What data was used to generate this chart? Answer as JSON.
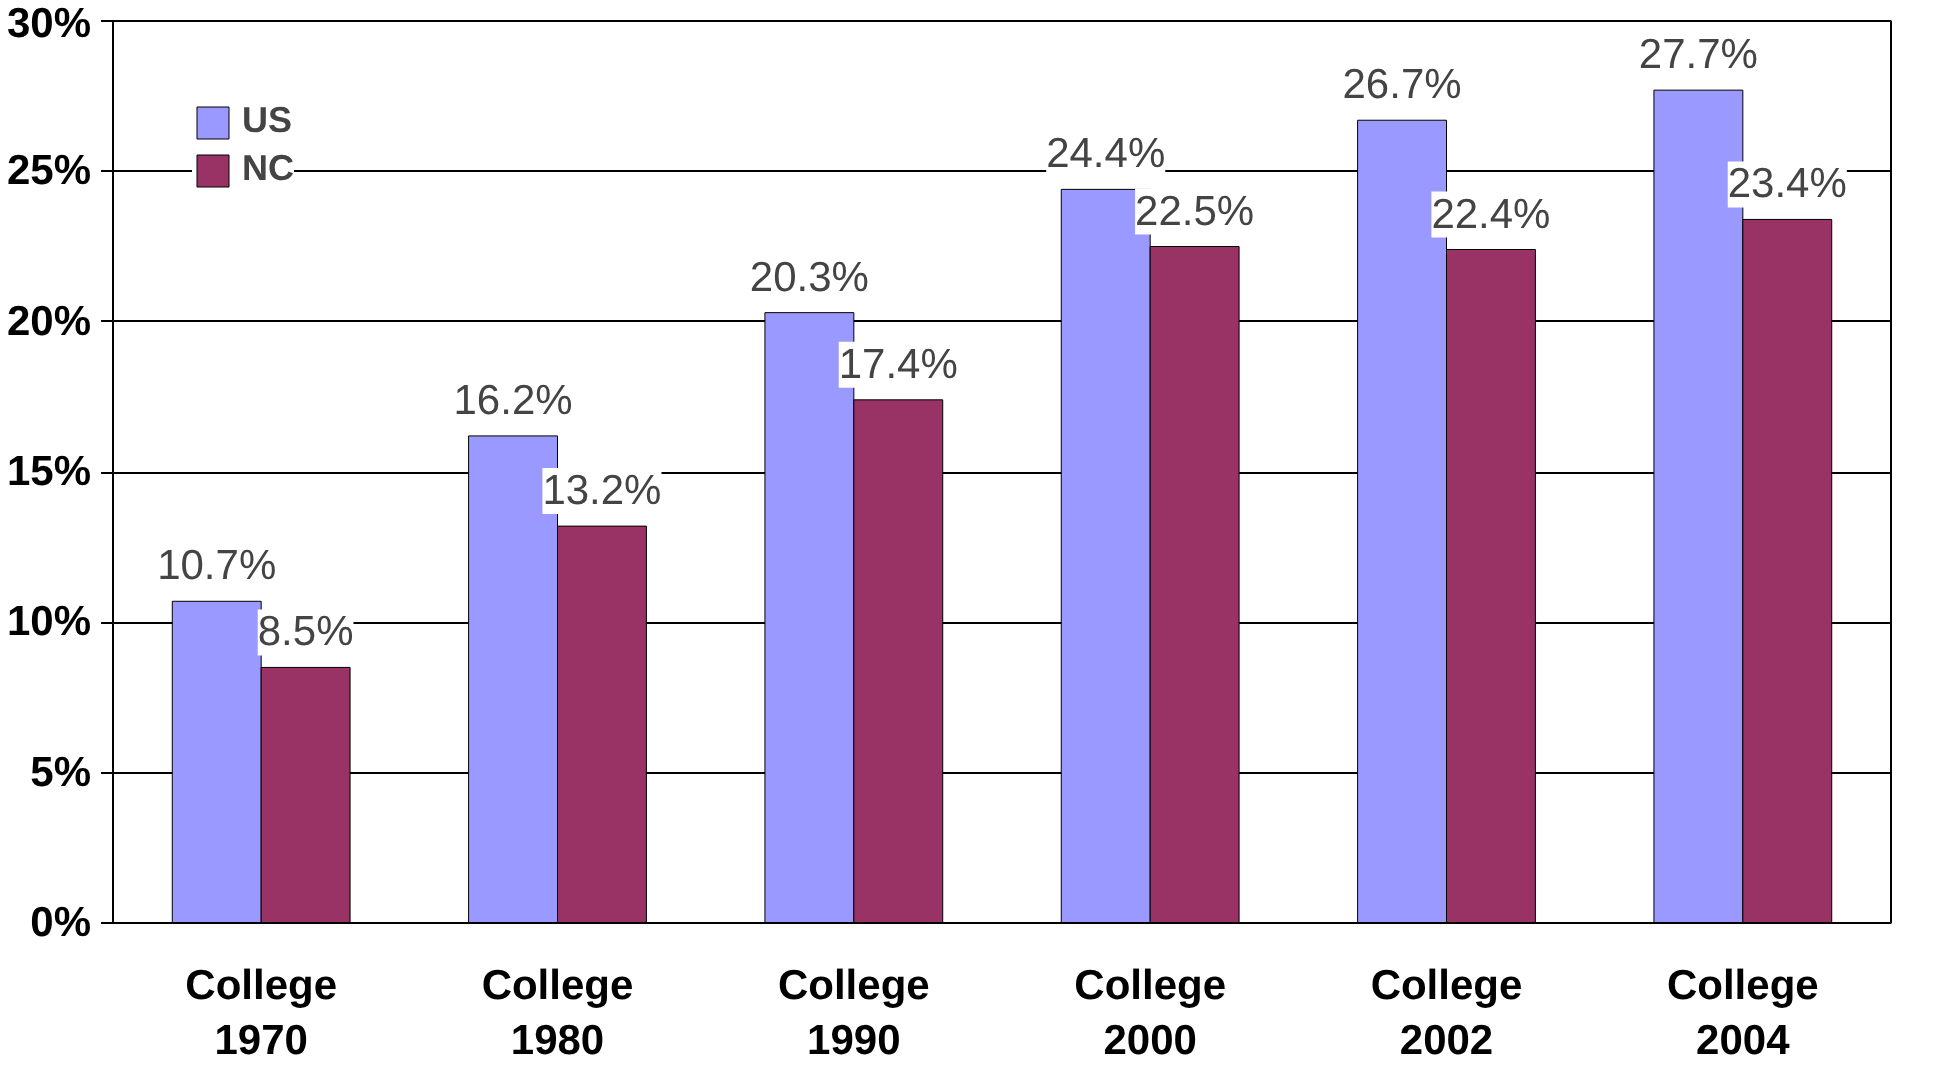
{
  "chart_data": {
    "type": "bar",
    "categories": [
      "College\n1970",
      "College\n1980",
      "College\n1990",
      "College\n2000",
      "College\n2002",
      "College\n2004"
    ],
    "series": [
      {
        "name": "US",
        "color": "#9999ff",
        "values": [
          10.7,
          16.2,
          20.3,
          24.4,
          26.7,
          27.7
        ],
        "value_labels": [
          "10.7%",
          "16.2%",
          "20.3%",
          "24.4%",
          "26.7%",
          "27.7%"
        ]
      },
      {
        "name": "NC",
        "color": "#993366",
        "values": [
          8.5,
          13.2,
          17.4,
          22.5,
          22.4,
          23.4
        ],
        "value_labels": [
          "8.5%",
          "13.2%",
          "17.4%",
          "22.5%",
          "22.4%",
          "23.4%"
        ]
      }
    ],
    "ylim": [
      0,
      30
    ],
    "yticks": [
      {
        "value": 0,
        "label": "0%"
      },
      {
        "value": 5,
        "label": "5%"
      },
      {
        "value": 10,
        "label": "10%"
      },
      {
        "value": 15,
        "label": "15%"
      },
      {
        "value": 20,
        "label": "20%"
      },
      {
        "value": 25,
        "label": "25%"
      },
      {
        "value": 30,
        "label": "30%"
      }
    ],
    "grid": "y",
    "legend": "top left"
  }
}
